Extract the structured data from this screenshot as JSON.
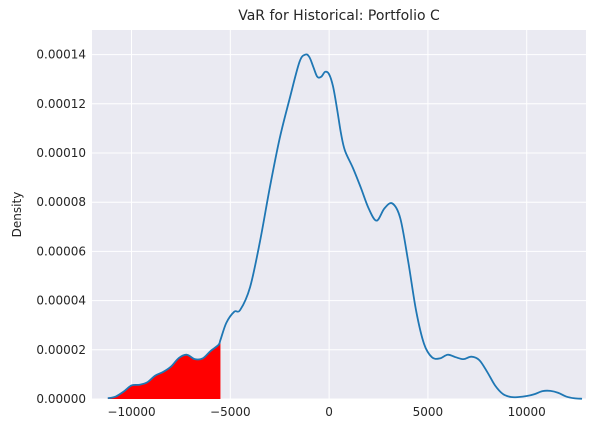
{
  "chart_data": {
    "type": "line",
    "title": "VaR for Historical: Portfolio C",
    "xlabel": "",
    "ylabel": "Density",
    "xlim": [
      -12000,
      13000
    ],
    "ylim": [
      0,
      0.00015
    ],
    "x_ticks": [
      -10000,
      -5000,
      0,
      5000,
      10000
    ],
    "x_tick_labels": [
      "−10000",
      "−5000",
      "0",
      "5000",
      "10000"
    ],
    "y_ticks": [
      0,
      2e-05,
      4e-05,
      6e-05,
      8e-05,
      0.0001,
      0.00012,
      0.00014
    ],
    "y_tick_labels": [
      "0.00000",
      "0.00002",
      "0.00004",
      "0.00006",
      "0.00008",
      "0.00010",
      "0.00012",
      "0.00014"
    ],
    "grid": true,
    "background": "#eaeaf2",
    "line_color": "#1f77b4",
    "fill_color": "#ff0000",
    "var_threshold": -5500,
    "series": [
      {
        "x": [
          -11200,
          -10800,
          -10400,
          -10000,
          -9600,
          -9200,
          -8800,
          -8400,
          -8000,
          -7600,
          -7200,
          -6800,
          -6400,
          -6000,
          -5600,
          -5500,
          -5200,
          -4800,
          -4500,
          -4000,
          -3500,
          -3000,
          -2500,
          -2000,
          -1500,
          -1200,
          -1000,
          -800,
          -600,
          -400,
          -200,
          0,
          200,
          400,
          600,
          800,
          1200,
          1600,
          2000,
          2400,
          2800,
          3200,
          3600,
          4000,
          4400,
          4800,
          5200,
          5600,
          6000,
          6400,
          6800,
          7200,
          7600,
          8000,
          8400,
          8800,
          9200,
          9600,
          10000,
          10400,
          10800,
          11200,
          11600,
          12000,
          12400,
          12800
        ],
        "y": [
          3e-07,
          1e-06,
          3e-06,
          5.5e-06,
          5.8e-06,
          6.8e-06,
          9.5e-06,
          1.1e-05,
          1.32e-05,
          1.67e-05,
          1.8e-05,
          1.62e-05,
          1.65e-05,
          1.95e-05,
          2.2e-05,
          2.4e-05,
          3.1e-05,
          3.55e-05,
          3.62e-05,
          4.55e-05,
          6.4e-05,
          8.6e-05,
          0.000106,
          0.000122,
          0.000137,
          0.00014,
          0.000139,
          0.000135,
          0.000131,
          0.000131,
          0.000133,
          0.000132,
          0.000127,
          0.000118,
          0.000108,
          0.000101,
          9.4e-05,
          8.6e-05,
          7.75e-05,
          7.25e-05,
          7.75e-05,
          7.95e-05,
          7.35e-05,
          5.6e-05,
          3.6e-05,
          2.25e-05,
          1.7e-05,
          1.65e-05,
          1.8e-05,
          1.7e-05,
          1.62e-05,
          1.72e-05,
          1.58e-05,
          1.1e-05,
          5.5e-06,
          2e-06,
          8e-07,
          8e-07,
          1.2e-06,
          2e-06,
          3.2e-06,
          3.3e-06,
          2.5e-06,
          1e-06,
          3e-07,
          1e-07
        ]
      }
    ]
  }
}
